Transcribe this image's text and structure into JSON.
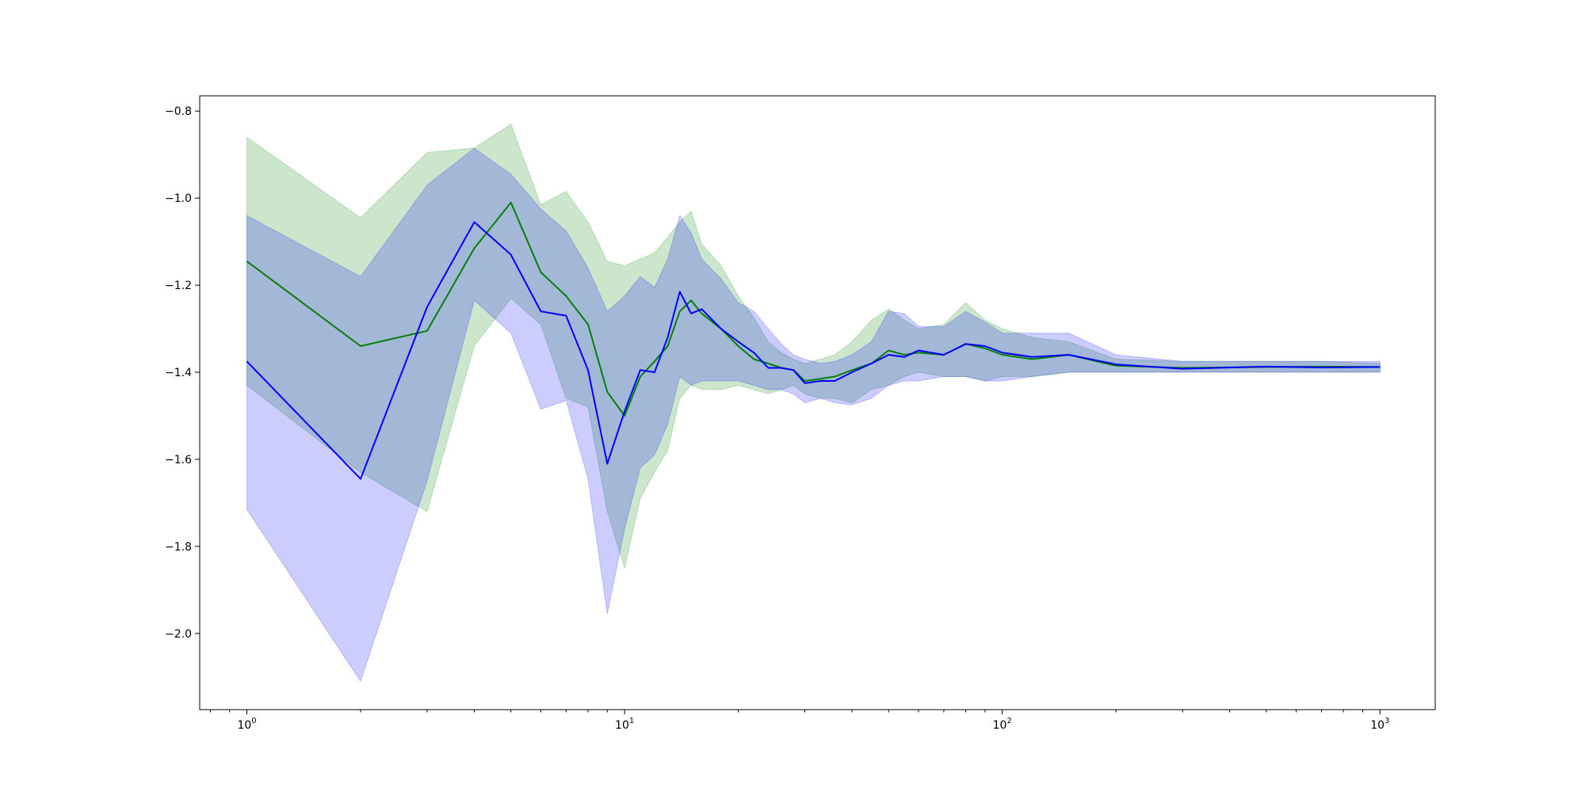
{
  "chart_data": {
    "type": "line",
    "title": "",
    "xlabel": "",
    "ylabel": "",
    "xscale": "log",
    "xlim": [
      0.75,
      1400
    ],
    "ylim": [
      -2.175,
      -0.765
    ],
    "grid": false,
    "legend": "none",
    "x_ticks": [
      {
        "value": 1,
        "base": "10",
        "exp": "0"
      },
      {
        "value": 10,
        "base": "10",
        "exp": "1"
      },
      {
        "value": 100,
        "base": "10",
        "exp": "2"
      },
      {
        "value": 1000,
        "base": "10",
        "exp": "3"
      }
    ],
    "y_ticks": [
      {
        "value": -0.8,
        "label": "−0.8"
      },
      {
        "value": -1.0,
        "label": "−1.0"
      },
      {
        "value": -1.2,
        "label": "−1.2"
      },
      {
        "value": -1.4,
        "label": "−1.4"
      },
      {
        "value": -1.6,
        "label": "−1.6"
      },
      {
        "value": -1.8,
        "label": "−1.8"
      },
      {
        "value": -2.0,
        "label": "−2.0"
      }
    ],
    "series": [
      {
        "color": "#008000",
        "band_color": "#008000",
        "band_opacity": 0.2,
        "x": [
          1,
          2,
          3,
          4,
          5,
          6,
          7,
          8,
          9,
          10,
          11,
          12,
          13,
          14,
          15,
          16,
          18,
          20,
          22,
          24,
          26,
          28,
          30,
          33,
          36,
          40,
          45,
          50,
          55,
          60,
          70,
          80,
          90,
          100,
          120,
          150,
          200,
          300,
          500,
          700,
          1000
        ],
        "y": [
          -1.145,
          -1.34,
          -1.305,
          -1.115,
          -1.01,
          -1.17,
          -1.225,
          -1.29,
          -1.445,
          -1.5,
          -1.41,
          -1.375,
          -1.34,
          -1.26,
          -1.235,
          -1.265,
          -1.3,
          -1.34,
          -1.37,
          -1.38,
          -1.39,
          -1.395,
          -1.42,
          -1.415,
          -1.41,
          -1.395,
          -1.38,
          -1.35,
          -1.36,
          -1.355,
          -1.36,
          -1.335,
          -1.345,
          -1.36,
          -1.37,
          -1.36,
          -1.385,
          -1.39,
          -1.388,
          -1.387,
          -1.388
        ],
        "lower": [
          -1.43,
          -1.63,
          -1.72,
          -1.34,
          -1.23,
          -1.29,
          -1.46,
          -1.48,
          -1.72,
          -1.85,
          -1.69,
          -1.63,
          -1.58,
          -1.46,
          -1.43,
          -1.44,
          -1.44,
          -1.43,
          -1.44,
          -1.45,
          -1.44,
          -1.43,
          -1.45,
          -1.46,
          -1.46,
          -1.47,
          -1.44,
          -1.43,
          -1.41,
          -1.4,
          -1.41,
          -1.41,
          -1.42,
          -1.41,
          -1.41,
          -1.4,
          -1.4,
          -1.4,
          -1.4,
          -1.4,
          -1.4
        ],
        "upper": [
          -0.86,
          -1.045,
          -0.895,
          -0.885,
          -0.83,
          -1.015,
          -0.985,
          -1.055,
          -1.145,
          -1.155,
          -1.14,
          -1.125,
          -1.09,
          -1.055,
          -1.03,
          -1.105,
          -1.155,
          -1.225,
          -1.275,
          -1.33,
          -1.355,
          -1.37,
          -1.38,
          -1.37,
          -1.36,
          -1.33,
          -1.28,
          -1.255,
          -1.28,
          -1.3,
          -1.29,
          -1.24,
          -1.28,
          -1.3,
          -1.32,
          -1.33,
          -1.37,
          -1.375,
          -1.375,
          -1.375,
          -1.38
        ]
      },
      {
        "color": "#0000ff",
        "band_color": "#0000ff",
        "band_opacity": 0.2,
        "x": [
          1,
          2,
          3,
          4,
          5,
          6,
          7,
          8,
          9,
          10,
          11,
          12,
          13,
          14,
          15,
          16,
          18,
          20,
          22,
          24,
          26,
          28,
          30,
          33,
          36,
          40,
          45,
          50,
          55,
          60,
          70,
          80,
          90,
          100,
          120,
          150,
          200,
          300,
          500,
          700,
          1000
        ],
        "y": [
          -1.375,
          -1.645,
          -1.25,
          -1.055,
          -1.13,
          -1.26,
          -1.27,
          -1.395,
          -1.61,
          -1.49,
          -1.395,
          -1.4,
          -1.32,
          -1.215,
          -1.265,
          -1.255,
          -1.3,
          -1.33,
          -1.355,
          -1.39,
          -1.39,
          -1.395,
          -1.425,
          -1.42,
          -1.42,
          -1.4,
          -1.38,
          -1.36,
          -1.365,
          -1.35,
          -1.36,
          -1.335,
          -1.34,
          -1.355,
          -1.365,
          -1.36,
          -1.382,
          -1.392,
          -1.387,
          -1.389,
          -1.388
        ],
        "lower": [
          -1.715,
          -2.11,
          -1.65,
          -1.235,
          -1.31,
          -1.485,
          -1.465,
          -1.645,
          -1.955,
          -1.76,
          -1.62,
          -1.59,
          -1.52,
          -1.41,
          -1.43,
          -1.42,
          -1.42,
          -1.42,
          -1.43,
          -1.44,
          -1.44,
          -1.45,
          -1.47,
          -1.46,
          -1.47,
          -1.475,
          -1.46,
          -1.43,
          -1.42,
          -1.42,
          -1.41,
          -1.41,
          -1.42,
          -1.42,
          -1.41,
          -1.4,
          -1.4,
          -1.4,
          -1.4,
          -1.4,
          -1.4
        ],
        "upper": [
          -1.04,
          -1.18,
          -0.97,
          -0.885,
          -0.945,
          -1.025,
          -1.075,
          -1.16,
          -1.26,
          -1.225,
          -1.18,
          -1.205,
          -1.14,
          -1.04,
          -1.08,
          -1.14,
          -1.185,
          -1.24,
          -1.26,
          -1.3,
          -1.335,
          -1.36,
          -1.37,
          -1.38,
          -1.375,
          -1.36,
          -1.33,
          -1.26,
          -1.265,
          -1.295,
          -1.295,
          -1.26,
          -1.285,
          -1.31,
          -1.31,
          -1.31,
          -1.36,
          -1.375,
          -1.375,
          -1.375,
          -1.375
        ]
      }
    ]
  }
}
